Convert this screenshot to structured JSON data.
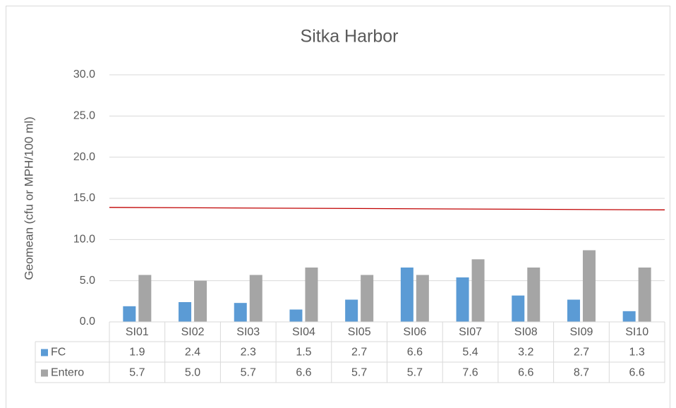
{
  "chart_data": {
    "type": "bar",
    "title": "Sitka Harbor",
    "y_label": "Geomean (cfu or MPH/100 ml)",
    "categories": [
      "SI01",
      "SI02",
      "SI03",
      "SI04",
      "SI05",
      "SI06",
      "SI07",
      "SI08",
      "SI09",
      "SI10"
    ],
    "series": [
      {
        "name": "FC",
        "color": "#5b9bd5",
        "values": [
          1.9,
          2.4,
          2.3,
          1.5,
          2.7,
          6.6,
          5.4,
          3.2,
          2.7,
          1.3
        ],
        "value_labels": [
          "1.9",
          "2.4",
          "2.3",
          "1.5",
          "2.7",
          "6.6",
          "5.4",
          "3.2",
          "2.7",
          "1.3"
        ]
      },
      {
        "name": "Entero",
        "color": "#a5a5a5",
        "values": [
          5.7,
          5,
          5.7,
          6.6,
          5.7,
          5.7,
          7.6,
          6.6,
          8.7,
          6.6
        ],
        "value_labels": [
          "5.7",
          "5.0",
          "5.7",
          "6.6",
          "5.7",
          "5.7",
          "7.6",
          "6.6",
          "8.7",
          "6.6"
        ]
      }
    ],
    "reference_line": {
      "color": "#c00000",
      "values": [
        13.9,
        13.6
      ]
    },
    "ylim": [
      0,
      30
    ],
    "yticks": [
      {
        "value": 0,
        "label": "0.0"
      },
      {
        "value": 5,
        "label": "5.0"
      },
      {
        "value": 10,
        "label": "10.0"
      },
      {
        "value": 15,
        "label": "15.0"
      },
      {
        "value": 20,
        "label": "20.0"
      },
      {
        "value": 25,
        "label": "25.0"
      },
      {
        "value": 30,
        "label": "30.0"
      }
    ],
    "grid": true,
    "data_table": true
  }
}
